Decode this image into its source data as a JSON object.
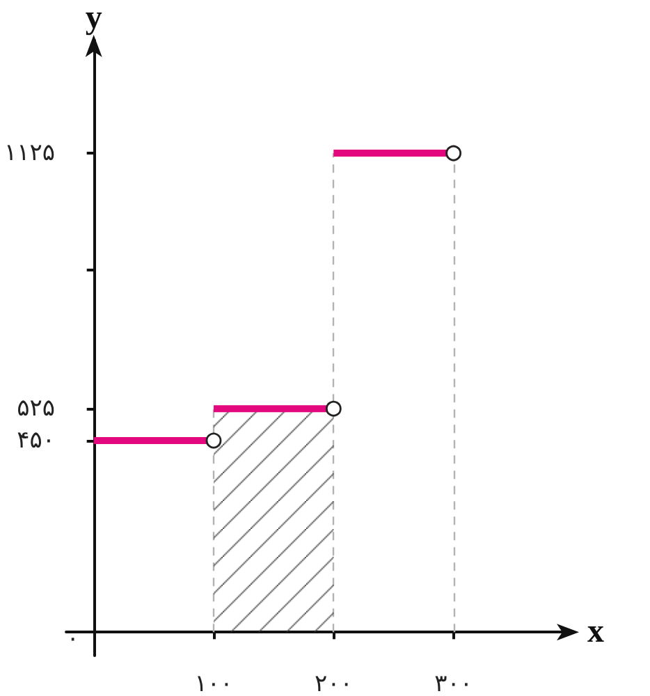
{
  "chart_data": {
    "type": "line",
    "xlabel": "x",
    "ylabel": "y",
    "xlim": [
      -23,
      400
    ],
    "ylim": [
      -55,
      1390
    ],
    "xticks": [
      {
        "value": 100,
        "label": "۱۰۰"
      },
      {
        "value": 200,
        "label": "۲۰۰"
      },
      {
        "value": 300,
        "label": "۳۰۰"
      }
    ],
    "yticks": [
      {
        "value": 450,
        "label": "۴۵۰"
      },
      {
        "value": 525,
        "label": "۵۲۵"
      },
      {
        "value": 850,
        "label": null
      },
      {
        "value": 1125,
        "label": "۱۱۲۵"
      }
    ],
    "series": [
      {
        "x": [
          0,
          100
        ],
        "values": [
          450,
          450
        ],
        "color": "#e4087e"
      },
      {
        "type": "area",
        "x": [
          100,
          200
        ],
        "values": [
          525,
          525
        ],
        "color": "#e4087e"
      },
      {
        "x": [
          200,
          300
        ],
        "values": [
          1125,
          1125
        ],
        "color": "#e4087e"
      },
      {
        "type": "scatter",
        "x": [
          100,
          200,
          300
        ],
        "values": [
          450,
          525,
          1125
        ],
        "color": "#ffffff",
        "marker": "circle"
      }
    ],
    "ref_lines": [
      {
        "axis": "x",
        "value": 100,
        "color": "#b3b3b3",
        "line_style": "dashed"
      },
      {
        "axis": "x",
        "value": 200,
        "color": "#b3b3b3",
        "line_style": "dashed"
      },
      {
        "axis": "x",
        "value": 300,
        "color": "#b3b3b3",
        "line_style": "dashed"
      }
    ],
    "annotations": [
      "۰"
    ]
  }
}
